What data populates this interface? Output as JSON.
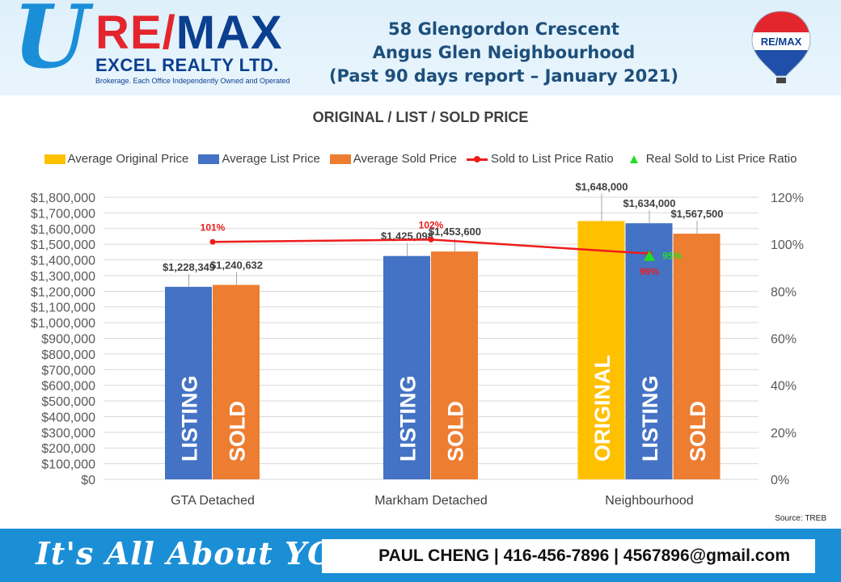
{
  "header": {
    "logo_letter": "U",
    "brand_re": "RE/",
    "brand_max": "MAX",
    "brand_sub": "EXCEL REALTY LTD.",
    "brand_tagline": "Brokerage. Each Office Independently Owned and Operated",
    "title_line1": "58 Glengordon Crescent",
    "title_line2": "Angus Glen Neighbourhood",
    "title_line3": "(Past 90 days report – January 2021)",
    "balloon_text": "RE/MAX"
  },
  "footer": {
    "slogan": "It's All About YOU",
    "contact": "PAUL CHENG | 416-456-7896 | 4567896@gmail.com"
  },
  "source": "Source: TREB",
  "colors": {
    "original": "#ffc000",
    "list": "#4472c4",
    "sold": "#ed7d31",
    "ratio": "#ee1c1c",
    "real_ratio": "#22dd22",
    "footer": "#1b8fd6"
  },
  "chart_data": {
    "type": "bar",
    "title": "ORIGINAL / LIST / SOLD PRICE",
    "categories": [
      "GTA Detached",
      "Markham Detached",
      "Neighbourhood"
    ],
    "ylim": [
      0,
      1800000
    ],
    "y2lim": [
      0,
      1.2
    ],
    "y_ticks": [
      "$0",
      "$100,000",
      "$200,000",
      "$300,000",
      "$400,000",
      "$500,000",
      "$600,000",
      "$700,000",
      "$800,000",
      "$900,000",
      "$1,000,000",
      "$1,100,000",
      "$1,200,000",
      "$1,300,000",
      "$1,400,000",
      "$1,500,000",
      "$1,600,000",
      "$1,700,000",
      "$1,800,000"
    ],
    "y2_ticks": [
      "0%",
      "20%",
      "40%",
      "60%",
      "80%",
      "100%",
      "120%"
    ],
    "legend": [
      "Average Original Price",
      "Average List Price",
      "Average Sold Price",
      "Sold to List Price Ratio",
      "Real Sold to List Price Ratio"
    ],
    "legend_position": "top",
    "grid": true,
    "series": [
      {
        "name": "Average Original Price",
        "values": [
          null,
          null,
          1648000
        ],
        "labels": [
          "",
          "",
          "$1,648,000"
        ],
        "bar_text": "ORIGINAL"
      },
      {
        "name": "Average List Price",
        "values": [
          1228349,
          1425098,
          1634000
        ],
        "labels": [
          "$1,228,349",
          "$1,425,098",
          "$1,634,000"
        ],
        "bar_text": "LISTING"
      },
      {
        "name": "Average Sold Price",
        "values": [
          1240632,
          1453600,
          1567500
        ],
        "labels": [
          "$1,240,632",
          "$1,453,600",
          "$1,567,500"
        ],
        "bar_text": "SOLD"
      }
    ],
    "ratio": {
      "name": "Sold to List Price Ratio",
      "values": [
        1.01,
        1.02,
        0.96
      ],
      "labels": [
        "101%",
        "102%",
        "96%"
      ]
    },
    "real_ratio": {
      "name": "Real Sold to List Price Ratio",
      "values": [
        null,
        null,
        0.95
      ],
      "labels": [
        "",
        "",
        "95%"
      ]
    }
  }
}
